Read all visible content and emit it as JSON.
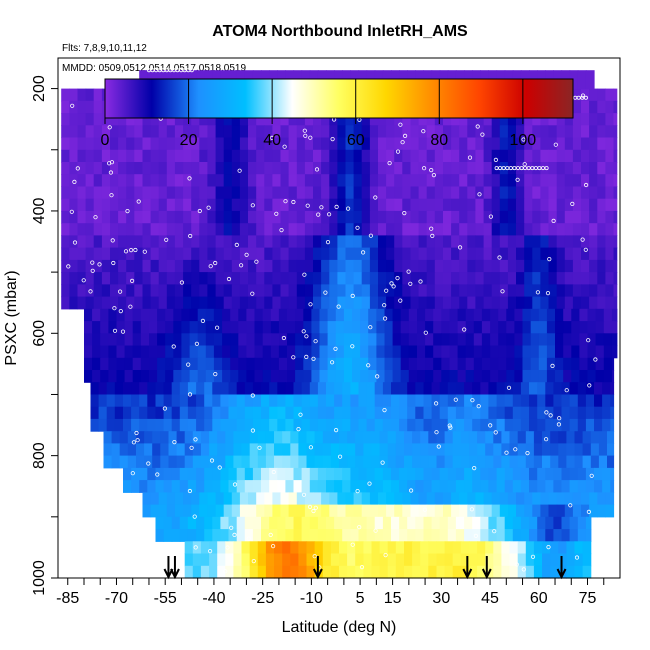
{
  "chart_data": {
    "type": "heatmap",
    "title": "ATOM4 Northbound InletRH_AMS",
    "flights_label": "Flts: 7,8,9,10,11,12",
    "dates_label": "MMDD: 0509,0512,0514,0517,0518,0519",
    "xlabel": "Latitude (deg N)",
    "ylabel": "PSXC (mbar)",
    "xlim": [
      -88,
      85
    ],
    "ylim": [
      1000,
      150
    ],
    "x_ticks": [
      -85,
      -70,
      -55,
      -40,
      -25,
      -10,
      5,
      15,
      30,
      45,
      60,
      75
    ],
    "x_tick_labels": [
      "-85",
      "-70",
      "-55",
      "-40",
      "-25",
      "-10",
      "5",
      "15",
      "30",
      "45",
      "60",
      "75"
    ],
    "y_ticks": [
      200,
      400,
      600,
      800,
      1000
    ],
    "y_tick_labels": [
      "200",
      "400",
      "600",
      "800",
      "1000"
    ],
    "colorbar": {
      "min": 0,
      "max": 112,
      "ticks": [
        0,
        20,
        40,
        60,
        80,
        100
      ],
      "tick_labels": [
        "0",
        "20",
        "40",
        "60",
        "80",
        "100"
      ],
      "colors": [
        "#8a2be2",
        "#0000a8",
        "#1e90ff",
        "#00bfff",
        "#ffffff",
        "#ffff60",
        "#ffd700",
        "#ff8c00",
        "#ff4500",
        "#cc0000",
        "#8b2525"
      ]
    },
    "profile_markers_lat": [
      -54,
      -52,
      -8,
      38,
      44,
      67
    ],
    "pressure_levels": [
      210,
      230,
      250,
      270,
      290,
      310,
      330,
      350,
      370,
      390,
      410,
      430,
      450,
      470,
      490,
      510,
      530,
      550,
      570,
      590,
      610,
      630,
      650,
      670,
      690,
      710,
      730,
      750,
      770,
      790,
      810,
      830,
      850,
      870,
      890,
      910,
      930,
      950,
      970,
      990
    ]
  }
}
